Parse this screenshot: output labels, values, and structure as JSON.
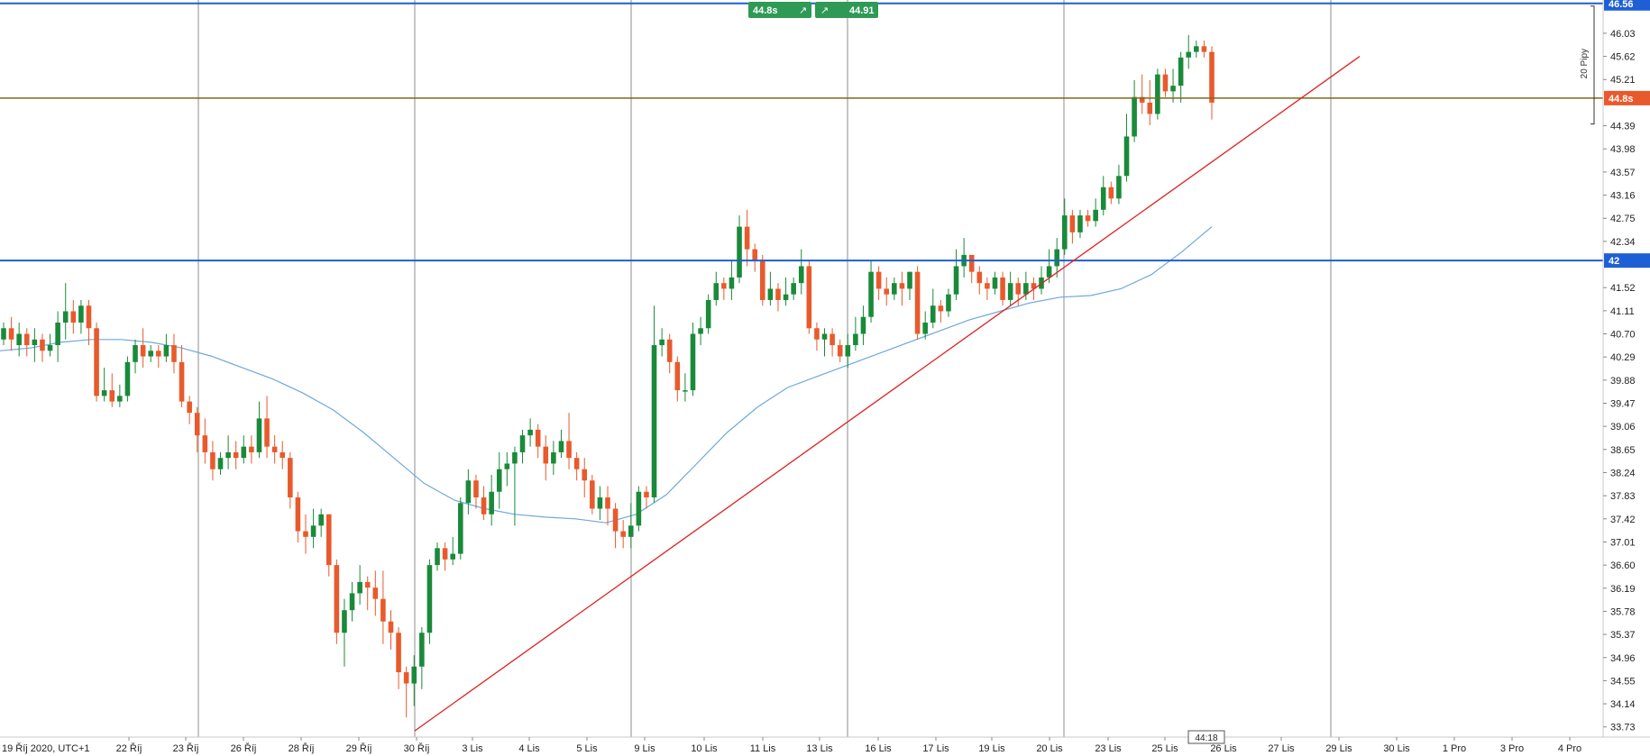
{
  "chart_data": {
    "type": "candlestick",
    "timezone_label": "19 Říj 2020, UTC+1",
    "x_labels": [
      "22 Říj",
      "23 Říj",
      "26 Říj",
      "28 Říj",
      "29 Říj",
      "30 Říj",
      "3 Lis",
      "4 Lis",
      "5 Lis",
      "9 Lis",
      "10 Lis",
      "11 Lis",
      "13 Lis",
      "16 Lis",
      "17 Lis",
      "19 Lis",
      "20 Lis",
      "23 Lis",
      "25 Lis",
      "26 Lis",
      "27 Lis",
      "29 Lis",
      "30 Lis",
      "1 Pro",
      "3 Pro",
      "4 Pro"
    ],
    "y_ticks": [
      "46.03",
      "45.62",
      "45.21",
      "44.39",
      "43.98",
      "43.57",
      "43.16",
      "42.75",
      "42.34",
      "41.52",
      "41.11",
      "40.70",
      "40.29",
      "39.88",
      "39.47",
      "39.06",
      "38.65",
      "38.24",
      "37.83",
      "37.42",
      "37.01",
      "36.60",
      "36.19",
      "35.78",
      "35.37",
      "34.96",
      "34.55",
      "34.14",
      "33.73"
    ],
    "ylim": [
      33.55,
      46.62
    ],
    "candles": [
      [
        40.6,
        40.8,
        40.5,
        40.9
      ],
      [
        40.8,
        40.6,
        40.4,
        41.0
      ],
      [
        40.5,
        40.7,
        40.3,
        40.9
      ],
      [
        40.7,
        40.5,
        40.3,
        40.8
      ],
      [
        40.5,
        40.6,
        40.2,
        40.8
      ],
      [
        40.6,
        40.4,
        40.2,
        40.7
      ],
      [
        40.4,
        40.5,
        40.3,
        40.7
      ],
      [
        40.5,
        40.9,
        40.2,
        41.1
      ],
      [
        40.9,
        41.1,
        40.6,
        41.6
      ],
      [
        41.1,
        40.9,
        40.7,
        41.3
      ],
      [
        40.9,
        41.2,
        40.7,
        41.3
      ],
      [
        41.2,
        40.8,
        40.5,
        41.3
      ],
      [
        40.8,
        39.6,
        39.5,
        40.9
      ],
      [
        39.6,
        39.7,
        39.5,
        40.1
      ],
      [
        39.7,
        39.5,
        39.4,
        40.0
      ],
      [
        39.5,
        39.6,
        39.4,
        39.8
      ],
      [
        39.6,
        40.2,
        39.5,
        40.3
      ],
      [
        40.2,
        40.5,
        40.0,
        40.6
      ],
      [
        40.5,
        40.3,
        40.1,
        40.8
      ],
      [
        40.3,
        40.4,
        40.2,
        40.5
      ],
      [
        40.4,
        40.3,
        40.1,
        40.5
      ],
      [
        40.3,
        40.5,
        40.2,
        40.7
      ],
      [
        40.5,
        40.2,
        40.0,
        40.7
      ],
      [
        40.2,
        39.5,
        39.4,
        40.5
      ],
      [
        39.5,
        39.3,
        39.1,
        39.6
      ],
      [
        39.3,
        38.9,
        38.6,
        39.4
      ],
      [
        38.9,
        38.6,
        38.4,
        39.2
      ],
      [
        38.6,
        38.3,
        38.1,
        38.8
      ],
      [
        38.3,
        38.5,
        38.2,
        38.6
      ],
      [
        38.5,
        38.6,
        38.3,
        38.9
      ],
      [
        38.6,
        38.5,
        38.3,
        38.8
      ],
      [
        38.5,
        38.7,
        38.4,
        38.9
      ],
      [
        38.7,
        38.6,
        38.4,
        38.9
      ],
      [
        38.6,
        39.2,
        38.5,
        39.5
      ],
      [
        39.2,
        38.7,
        38.5,
        39.6
      ],
      [
        38.7,
        38.6,
        38.4,
        38.9
      ],
      [
        38.6,
        38.5,
        38.3,
        38.8
      ],
      [
        38.5,
        37.8,
        37.6,
        38.6
      ],
      [
        37.8,
        37.2,
        37.0,
        37.9
      ],
      [
        37.2,
        37.1,
        36.8,
        37.5
      ],
      [
        37.1,
        37.3,
        36.9,
        37.6
      ],
      [
        37.3,
        37.5,
        37.1,
        37.6
      ],
      [
        37.5,
        36.6,
        36.4,
        37.5
      ],
      [
        36.6,
        35.4,
        35.2,
        36.7
      ],
      [
        35.4,
        35.8,
        34.8,
        36.0
      ],
      [
        35.8,
        36.1,
        35.6,
        36.3
      ],
      [
        36.1,
        36.3,
        35.9,
        36.6
      ],
      [
        36.3,
        36.2,
        35.8,
        36.4
      ],
      [
        36.2,
        36.0,
        35.7,
        36.5
      ],
      [
        36.0,
        35.6,
        35.2,
        36.5
      ],
      [
        35.6,
        35.4,
        35.1,
        35.8
      ],
      [
        35.4,
        34.7,
        34.4,
        35.5
      ],
      [
        34.7,
        34.5,
        33.9,
        34.8
      ],
      [
        34.5,
        34.8,
        34.1,
        35.0
      ],
      [
        34.8,
        35.4,
        34.4,
        35.5
      ],
      [
        35.4,
        36.6,
        35.2,
        36.7
      ],
      [
        36.6,
        36.9,
        36.5,
        37.0
      ],
      [
        36.9,
        36.7,
        36.5,
        37.0
      ],
      [
        36.7,
        36.8,
        36.6,
        37.1
      ],
      [
        36.8,
        37.7,
        36.7,
        37.8
      ],
      [
        37.7,
        38.1,
        37.5,
        38.3
      ],
      [
        38.1,
        37.8,
        37.6,
        38.2
      ],
      [
        37.8,
        37.5,
        37.4,
        38.0
      ],
      [
        37.5,
        37.9,
        37.3,
        38.2
      ],
      [
        37.9,
        38.3,
        37.6,
        38.6
      ],
      [
        38.3,
        38.4,
        38.0,
        38.6
      ],
      [
        38.4,
        38.6,
        37.3,
        38.7
      ],
      [
        38.6,
        38.9,
        38.4,
        39.0
      ],
      [
        38.9,
        39.0,
        38.7,
        39.2
      ],
      [
        39.0,
        38.7,
        38.5,
        39.1
      ],
      [
        38.7,
        38.4,
        38.1,
        38.9
      ],
      [
        38.4,
        38.6,
        38.2,
        38.8
      ],
      [
        38.6,
        38.8,
        38.5,
        39.0
      ],
      [
        38.8,
        38.5,
        38.3,
        39.3
      ],
      [
        38.5,
        38.3,
        38.1,
        38.6
      ],
      [
        38.3,
        38.1,
        37.8,
        38.5
      ],
      [
        38.1,
        37.6,
        37.5,
        38.2
      ],
      [
        37.6,
        37.8,
        37.4,
        38.0
      ],
      [
        37.8,
        37.6,
        37.3,
        38.0
      ],
      [
        37.6,
        37.2,
        36.9,
        37.7
      ],
      [
        37.2,
        37.1,
        36.9,
        37.4
      ],
      [
        37.1,
        37.3,
        36.9,
        37.7
      ],
      [
        37.3,
        37.9,
        37.2,
        38.0
      ],
      [
        37.9,
        37.8,
        37.6,
        38.0
      ],
      [
        37.8,
        40.5,
        37.7,
        41.2
      ],
      [
        40.5,
        40.6,
        40.3,
        40.8
      ],
      [
        40.6,
        40.2,
        40.0,
        40.7
      ],
      [
        40.2,
        39.7,
        39.5,
        40.3
      ],
      [
        39.7,
        39.7,
        39.5,
        40.0
      ],
      [
        39.7,
        40.7,
        39.6,
        40.9
      ],
      [
        40.7,
        40.8,
        40.5,
        41.0
      ],
      [
        40.8,
        41.3,
        40.7,
        41.4
      ],
      [
        41.3,
        41.6,
        41.2,
        41.8
      ],
      [
        41.6,
        41.5,
        41.3,
        41.7
      ],
      [
        41.5,
        41.7,
        41.3,
        42.0
      ],
      [
        41.7,
        42.6,
        41.6,
        42.8
      ],
      [
        42.6,
        42.2,
        41.9,
        42.9
      ],
      [
        42.2,
        42.0,
        41.8,
        42.3
      ],
      [
        42.0,
        41.3,
        41.2,
        42.1
      ],
      [
        41.3,
        41.5,
        41.2,
        41.8
      ],
      [
        41.5,
        41.3,
        41.1,
        41.6
      ],
      [
        41.3,
        41.4,
        41.2,
        41.7
      ],
      [
        41.4,
        41.6,
        41.3,
        41.7
      ],
      [
        41.6,
        41.9,
        41.4,
        42.2
      ],
      [
        41.9,
        40.8,
        40.7,
        42.0
      ],
      [
        40.8,
        40.6,
        40.4,
        40.9
      ],
      [
        40.6,
        40.7,
        40.3,
        40.8
      ],
      [
        40.7,
        40.5,
        40.3,
        40.8
      ],
      [
        40.5,
        40.3,
        40.2,
        40.6
      ],
      [
        40.3,
        40.5,
        40.1,
        40.7
      ],
      [
        40.5,
        40.7,
        40.4,
        41.0
      ],
      [
        40.7,
        41.0,
        40.5,
        41.2
      ],
      [
        41.0,
        41.8,
        40.9,
        42.0
      ],
      [
        41.8,
        41.5,
        41.3,
        41.9
      ],
      [
        41.5,
        41.4,
        41.2,
        41.7
      ],
      [
        41.4,
        41.6,
        41.3,
        41.7
      ],
      [
        41.6,
        41.5,
        41.2,
        41.8
      ],
      [
        41.5,
        41.8,
        41.3,
        41.8
      ],
      [
        41.8,
        40.7,
        40.6,
        41.9
      ],
      [
        40.7,
        40.9,
        40.6,
        41.1
      ],
      [
        40.9,
        41.2,
        40.8,
        41.5
      ],
      [
        41.2,
        41.1,
        40.9,
        41.3
      ],
      [
        41.1,
        41.4,
        41.0,
        41.5
      ],
      [
        41.4,
        41.9,
        41.3,
        42.2
      ],
      [
        41.9,
        42.1,
        41.7,
        42.4
      ],
      [
        42.1,
        41.8,
        41.6,
        42.1
      ],
      [
        41.8,
        41.6,
        41.4,
        41.9
      ],
      [
        41.6,
        41.5,
        41.3,
        41.7
      ],
      [
        41.5,
        41.7,
        41.4,
        41.8
      ],
      [
        41.7,
        41.3,
        41.2,
        41.8
      ],
      [
        41.3,
        41.6,
        41.2,
        41.8
      ],
      [
        41.6,
        41.4,
        41.2,
        41.7
      ],
      [
        41.4,
        41.6,
        41.3,
        41.8
      ],
      [
        41.6,
        41.5,
        41.3,
        41.7
      ],
      [
        41.5,
        41.7,
        41.4,
        41.9
      ],
      [
        41.7,
        41.9,
        41.6,
        42.2
      ],
      [
        41.9,
        42.2,
        41.7,
        42.4
      ],
      [
        42.2,
        42.8,
        42.1,
        43.1
      ],
      [
        42.8,
        42.5,
        42.3,
        42.9
      ],
      [
        42.5,
        42.8,
        42.4,
        42.9
      ],
      [
        42.8,
        42.7,
        42.6,
        42.9
      ],
      [
        42.7,
        42.9,
        42.6,
        43.1
      ],
      [
        42.9,
        43.3,
        42.8,
        43.5
      ],
      [
        43.3,
        43.1,
        43.0,
        43.4
      ],
      [
        43.1,
        43.5,
        43.0,
        43.7
      ],
      [
        43.5,
        44.2,
        43.4,
        44.6
      ],
      [
        44.2,
        44.9,
        44.1,
        45.2
      ],
      [
        44.9,
        44.8,
        44.6,
        45.3
      ],
      [
        44.8,
        44.6,
        44.4,
        45.2
      ],
      [
        44.6,
        45.3,
        44.5,
        45.4
      ],
      [
        45.3,
        45.0,
        44.9,
        45.4
      ],
      [
        45.0,
        45.1,
        44.8,
        45.4
      ],
      [
        45.1,
        45.6,
        44.8,
        45.7
      ],
      [
        45.6,
        45.7,
        45.4,
        46.0
      ],
      [
        45.7,
        45.8,
        45.6,
        45.9
      ],
      [
        45.8,
        45.7,
        45.6,
        45.9
      ],
      [
        45.7,
        44.8,
        44.5,
        45.8
      ]
    ],
    "ma": [
      40.4,
      40.45,
      40.55,
      40.6,
      40.6,
      40.55,
      40.45,
      40.3,
      40.1,
      39.9,
      39.65,
      39.35,
      38.95,
      38.5,
      38.05,
      37.75,
      37.6,
      37.5,
      37.45,
      37.42,
      37.35,
      37.5,
      37.85,
      38.4,
      38.95,
      39.4,
      39.75,
      39.95,
      40.15,
      40.35,
      40.55,
      40.75,
      40.95,
      41.1,
      41.25,
      41.35,
      41.38,
      41.5,
      41.75,
      42.15,
      42.6
    ],
    "ma_color": "#6fa8dc",
    "bull_color": "#1a8a3a",
    "bear_color": "#e85a2c",
    "horizontal_lines": [
      {
        "value": 46.56,
        "label": "46.56",
        "color": "#1f5fd6"
      },
      {
        "value": 42.0,
        "label": "42",
        "color": "#1f5fd6"
      },
      {
        "value": 44.88,
        "label": "44.8s",
        "color": "#7a6a1a",
        "label_bg": "#e85a2c"
      }
    ],
    "trendline": {
      "from": [
        33.66
      ],
      "to": [
        45.62
      ],
      "color": "#e02020"
    },
    "badges": [
      {
        "text": "44.8s",
        "arrow": "↗"
      },
      {
        "text": "↗",
        "sub": "44.91"
      }
    ],
    "pips_label": "20 Pipy",
    "countdown": "44:18"
  }
}
